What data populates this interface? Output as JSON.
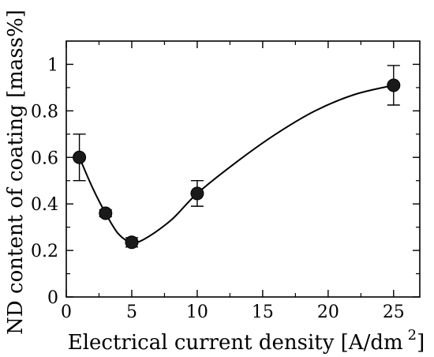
{
  "chart_data": {
    "type": "scatter",
    "title": "",
    "xlabel": "Electrical current density [A/dm",
    "xlabel_superscript": "2",
    "xlabel_suffix": "]",
    "ylabel": "ND content of coating [mass%]",
    "xlim": [
      0,
      27
    ],
    "ylim": [
      0,
      1.1
    ],
    "x_ticks": [
      0,
      5,
      10,
      15,
      20,
      25
    ],
    "y_ticks": [
      0,
      0.2,
      0.4,
      0.6,
      0.8,
      1
    ],
    "x_tick_labels": [
      "0",
      "5",
      "10",
      "15",
      "20",
      "25"
    ],
    "y_tick_labels": [
      "0",
      "0.2",
      "0.4",
      "0.6",
      "0.8",
      "1"
    ],
    "grid": false,
    "legend": "none",
    "marker_color": "#1a1a1a",
    "series": [
      {
        "x": [
          1,
          3,
          5,
          10,
          25
        ],
        "y": [
          0.6,
          0.36,
          0.235,
          0.445,
          0.91
        ],
        "yerr": [
          0.1,
          0.015,
          0.02,
          0.055,
          0.085
        ]
      }
    ],
    "fit_curve": {
      "x": [
        1,
        2,
        3,
        4,
        5,
        6,
        8,
        10,
        13,
        16,
        19,
        22,
        25
      ],
      "y": [
        0.6,
        0.47,
        0.36,
        0.27,
        0.235,
        0.25,
        0.33,
        0.445,
        0.58,
        0.7,
        0.8,
        0.87,
        0.91
      ]
    }
  }
}
